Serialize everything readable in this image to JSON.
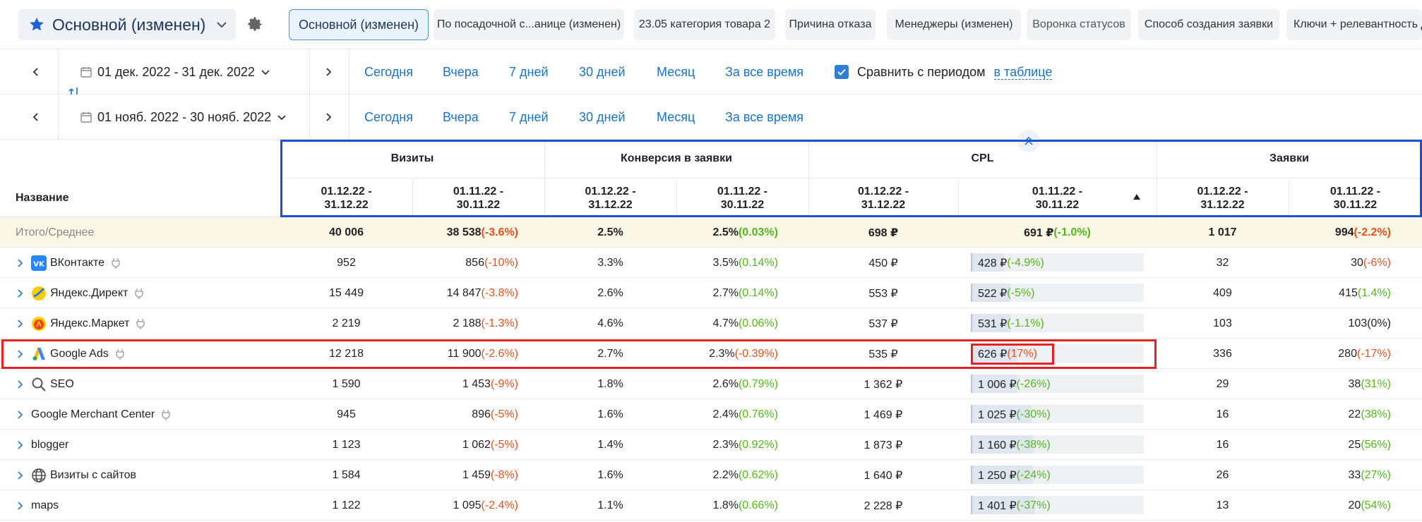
{
  "topbar": {
    "report_title": "Основной (изменен)",
    "tabs": [
      "Основной (изменен)",
      "По посадочной с...анице (изменен)",
      "23.05 категория товара 2",
      "Причина отказа",
      "Менеджеры (изменен)",
      "Воронка статусов",
      "Способ создания заявки",
      "Ключи + релевантность Д"
    ]
  },
  "period1": {
    "range": "01 дек. 2022 - 31 дек. 2022",
    "quick": [
      "Сегодня",
      "Вчера",
      "7 дней",
      "30 дней",
      "Месяц",
      "За все время"
    ],
    "compare_label": "Сравнить с периодом",
    "compare_link": "в таблице",
    "compare_checked": true
  },
  "period2": {
    "range": "01 нояб. 2022 - 30 нояб. 2022",
    "quick": [
      "Сегодня",
      "Вчера",
      "7 дней",
      "30 дней",
      "Месяц",
      "За все время"
    ]
  },
  "table": {
    "name_header": "Название",
    "groups": [
      "Визиты",
      "Конверсия в заявки",
      "CPL",
      "Заявки"
    ],
    "sub_headers": [
      "01.12.22 -\n31.12.22",
      "01.11.22 -\n30.11.22",
      "01.12.22 -\n31.12.22",
      "01.11.22 -\n30.11.22",
      "01.12.22 -\n31.12.22",
      "01.11.22 -\n30.11.22",
      "01.12.22 -\n31.12.22",
      "01.11.22 -\n30.11.22"
    ],
    "total": {
      "label": "Итого/Среднее",
      "visits_cur": "40 006",
      "visits_prev": "38 538",
      "visits_delta": "(-3.6%)",
      "conv_cur": "2.5%",
      "conv_prev": "2.5%",
      "conv_delta": "(0.03%)",
      "cpl_cur": "698 ₽",
      "cpl_prev": "691 ₽",
      "cpl_delta": "(-1.0%)",
      "leads_cur": "1 017",
      "leads_prev": "994",
      "leads_delta": "(-2.2%)"
    },
    "rows": [
      {
        "name": "ВКонтакте",
        "icon": "vk-icon",
        "plug": true,
        "visits_cur": "952",
        "visits_prev": "856",
        "visits_delta": "(-10%)",
        "visits_tone": "neg",
        "conv_cur": "3.3%",
        "conv_prev": "3.5%",
        "conv_delta": "(0.14%)",
        "conv_tone": "pos",
        "cpl_cur": "450 ₽",
        "cpl_prev": "428 ₽",
        "cpl_delta": "(-4.9%)",
        "cpl_tone": "pos",
        "cpl_fill": 0.19,
        "leads_cur": "32",
        "leads_prev": "30",
        "leads_delta": "(-6%)",
        "leads_tone": "neg"
      },
      {
        "name": "Яндекс.Директ",
        "icon": "yandex-direct-icon",
        "plug": true,
        "visits_cur": "15 449",
        "visits_prev": "14 847",
        "visits_delta": "(-3.8%)",
        "visits_tone": "neg",
        "conv_cur": "2.6%",
        "conv_prev": "2.7%",
        "conv_delta": "(0.14%)",
        "conv_tone": "pos",
        "cpl_cur": "553 ₽",
        "cpl_prev": "522 ₽",
        "cpl_delta": "(-5%)",
        "cpl_tone": "pos",
        "cpl_fill": 0.23,
        "leads_cur": "409",
        "leads_prev": "415",
        "leads_delta": "(1.4%)",
        "leads_tone": "pos"
      },
      {
        "name": "Яндекс.Маркет",
        "icon": "yandex-market-icon",
        "plug": true,
        "visits_cur": "2 219",
        "visits_prev": "2 188",
        "visits_delta": "(-1.3%)",
        "visits_tone": "neg",
        "conv_cur": "4.6%",
        "conv_prev": "4.7%",
        "conv_delta": "(0.06%)",
        "conv_tone": "pos",
        "cpl_cur": "537 ₽",
        "cpl_prev": "531 ₽",
        "cpl_delta": "(-1.1%)",
        "cpl_tone": "pos",
        "cpl_fill": 0.23,
        "leads_cur": "103",
        "leads_prev": "103",
        "leads_delta": "(0%)",
        "leads_tone": "neu"
      },
      {
        "name": "Google Ads",
        "icon": "google-ads-icon",
        "plug": true,
        "visits_cur": "12 218",
        "visits_prev": "11 900",
        "visits_delta": "(-2.6%)",
        "visits_tone": "neg",
        "conv_cur": "2.7%",
        "conv_prev": "2.3%",
        "conv_delta": "(-0.39%)",
        "conv_tone": "neg",
        "cpl_cur": "535 ₽",
        "cpl_prev": "626 ₽",
        "cpl_delta": "(17%)",
        "cpl_tone": "neg",
        "cpl_fill": 0.27,
        "leads_cur": "336",
        "leads_prev": "280",
        "leads_delta": "(-17%)",
        "leads_tone": "neg"
      },
      {
        "name": "SEO",
        "icon": "search-icon",
        "plug": false,
        "visits_cur": "1 590",
        "visits_prev": "1 453",
        "visits_delta": "(-9%)",
        "visits_tone": "neg",
        "conv_cur": "1.8%",
        "conv_prev": "2.6%",
        "conv_delta": "(0.79%)",
        "conv_tone": "pos",
        "cpl_cur": "1 362 ₽",
        "cpl_prev": "1 006 ₽",
        "cpl_delta": "(-26%)",
        "cpl_tone": "pos",
        "cpl_fill": 0.27,
        "leads_cur": "29",
        "leads_prev": "38",
        "leads_delta": "(31%)",
        "leads_tone": "pos"
      },
      {
        "name": "Google Merchant Center",
        "icon": "",
        "plug": true,
        "visits_cur": "945",
        "visits_prev": "896",
        "visits_delta": "(-5%)",
        "visits_tone": "neg",
        "conv_cur": "1.6%",
        "conv_prev": "2.4%",
        "conv_delta": "(0.76%)",
        "conv_tone": "pos",
        "cpl_cur": "1 469 ₽",
        "cpl_prev": "1 025 ₽",
        "cpl_delta": "(-30%)",
        "cpl_tone": "pos",
        "cpl_fill": 0.35,
        "leads_cur": "16",
        "leads_prev": "22",
        "leads_delta": "(38%)",
        "leads_tone": "pos"
      },
      {
        "name": "blogger",
        "icon": "",
        "plug": false,
        "visits_cur": "1 123",
        "visits_prev": "1 062",
        "visits_delta": "(-5%)",
        "visits_tone": "neg",
        "conv_cur": "1.4%",
        "conv_prev": "2.3%",
        "conv_delta": "(0.92%)",
        "conv_tone": "pos",
        "cpl_cur": "1 873 ₽",
        "cpl_prev": "1 160 ₽",
        "cpl_delta": "(-38%)",
        "cpl_tone": "pos",
        "cpl_fill": 0.36,
        "leads_cur": "16",
        "leads_prev": "25",
        "leads_delta": "(56%)",
        "leads_tone": "pos"
      },
      {
        "name": "Визиты с сайтов",
        "icon": "globe-icon",
        "plug": false,
        "visits_cur": "1 584",
        "visits_prev": "1 459",
        "visits_delta": "(-8%)",
        "visits_tone": "neg",
        "conv_cur": "1.6%",
        "conv_prev": "2.2%",
        "conv_delta": "(0.62%)",
        "conv_tone": "pos",
        "cpl_cur": "1 640 ₽",
        "cpl_prev": "1 250 ₽",
        "cpl_delta": "(-24%)",
        "cpl_tone": "pos",
        "cpl_fill": 0.36,
        "leads_cur": "26",
        "leads_prev": "33",
        "leads_delta": "(27%)",
        "leads_tone": "pos"
      },
      {
        "name": "maps",
        "icon": "",
        "plug": false,
        "visits_cur": "1 122",
        "visits_prev": "1 095",
        "visits_delta": "(-2.4%)",
        "visits_tone": "neg",
        "conv_cur": "1.1%",
        "conv_prev": "1.8%",
        "conv_delta": "(0.66%)",
        "conv_tone": "pos",
        "cpl_cur": "2 228 ₽",
        "cpl_prev": "1 401 ₽",
        "cpl_delta": "(-37%)",
        "cpl_tone": "pos",
        "cpl_fill": 0.37,
        "leads_cur": "13",
        "leads_prev": "20",
        "leads_delta": "(54%)",
        "leads_tone": "pos"
      }
    ]
  },
  "colors": {
    "accent": "#1b73c9",
    "negative": "#e8501c",
    "positive": "#52b81a",
    "highlight_box_blue": "#1d4fd1",
    "highlight_box_red": "#e52222",
    "total_row_bg": "#fbf7e6"
  }
}
